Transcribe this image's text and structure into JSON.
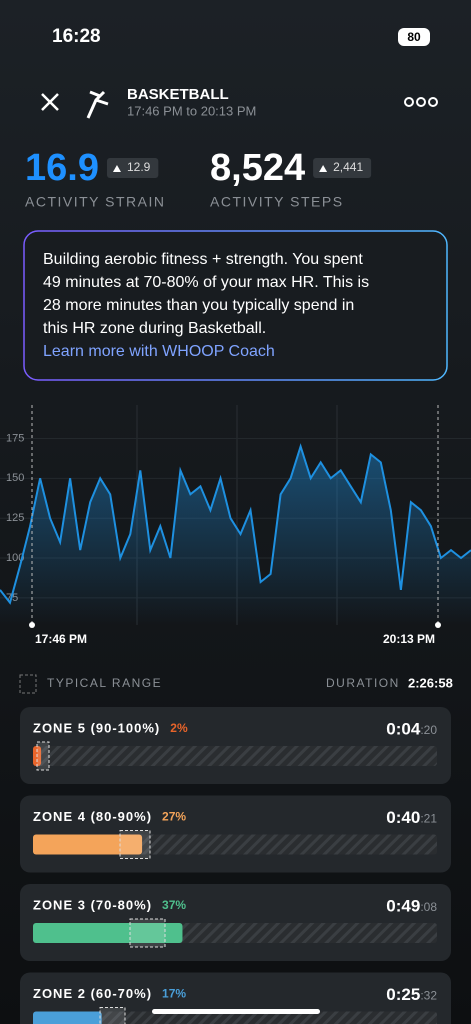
{
  "status_bar": {
    "time": "16:28",
    "battery": "80"
  },
  "header": {
    "title": "BASKETBALL",
    "subtitle": "17:46 PM to 20:13 PM"
  },
  "metrics": [
    {
      "value": "16.9",
      "delta": "12.9",
      "label": "ACTIVITY STRAIN"
    },
    {
      "value": "8,524",
      "delta": "2,441",
      "label": "ACTIVITY STEPS"
    }
  ],
  "insight": {
    "lines": [
      "Building aerobic fitness + strength. You spent",
      "49 minutes at 70-80% of your max HR. This is",
      "28 more minutes than you typically spend in",
      "this HR zone during Basketball."
    ],
    "link": "Learn more with WHOOP Coach"
  },
  "hr_chart": {
    "type": "line",
    "color": "#1e90e0",
    "ylim": [
      58,
      196
    ],
    "yticks": [
      75,
      100,
      125,
      150,
      175
    ],
    "x_labels": [
      "17:46 PM",
      "20:13 PM"
    ],
    "values": [
      80,
      72,
      95,
      120,
      150,
      125,
      110,
      150,
      105,
      135,
      150,
      140,
      100,
      115,
      155,
      105,
      120,
      100,
      155,
      140,
      145,
      130,
      150,
      125,
      115,
      130,
      85,
      90,
      140,
      150,
      170,
      150,
      160,
      150,
      155,
      145,
      135,
      165,
      160,
      130,
      80,
      135,
      130,
      120,
      100,
      105,
      100,
      105
    ]
  },
  "legend": {
    "typical": "TYPICAL RANGE",
    "duration_label": "DURATION",
    "duration": "2:26:58"
  },
  "zones": [
    {
      "title": "ZONE 5 (90-100%)",
      "percent": 2,
      "percent_label": "2%",
      "time": "0:04",
      "seconds": ":20",
      "color": "#e8642a"
    },
    {
      "title": "ZONE 4 (80-90%)",
      "percent": 27,
      "percent_label": "27%",
      "time": "0:40",
      "seconds": ":21",
      "color": "#f4a45a"
    },
    {
      "title": "ZONE 3 (70-80%)",
      "percent": 37,
      "percent_label": "37%",
      "time": "0:49",
      "seconds": ":08",
      "color": "#4fc08d"
    },
    {
      "title": "ZONE 2 (60-70%)",
      "percent": 17,
      "percent_label": "17%",
      "time": "0:25",
      "seconds": ":32",
      "color": "#4a9fd9"
    }
  ]
}
